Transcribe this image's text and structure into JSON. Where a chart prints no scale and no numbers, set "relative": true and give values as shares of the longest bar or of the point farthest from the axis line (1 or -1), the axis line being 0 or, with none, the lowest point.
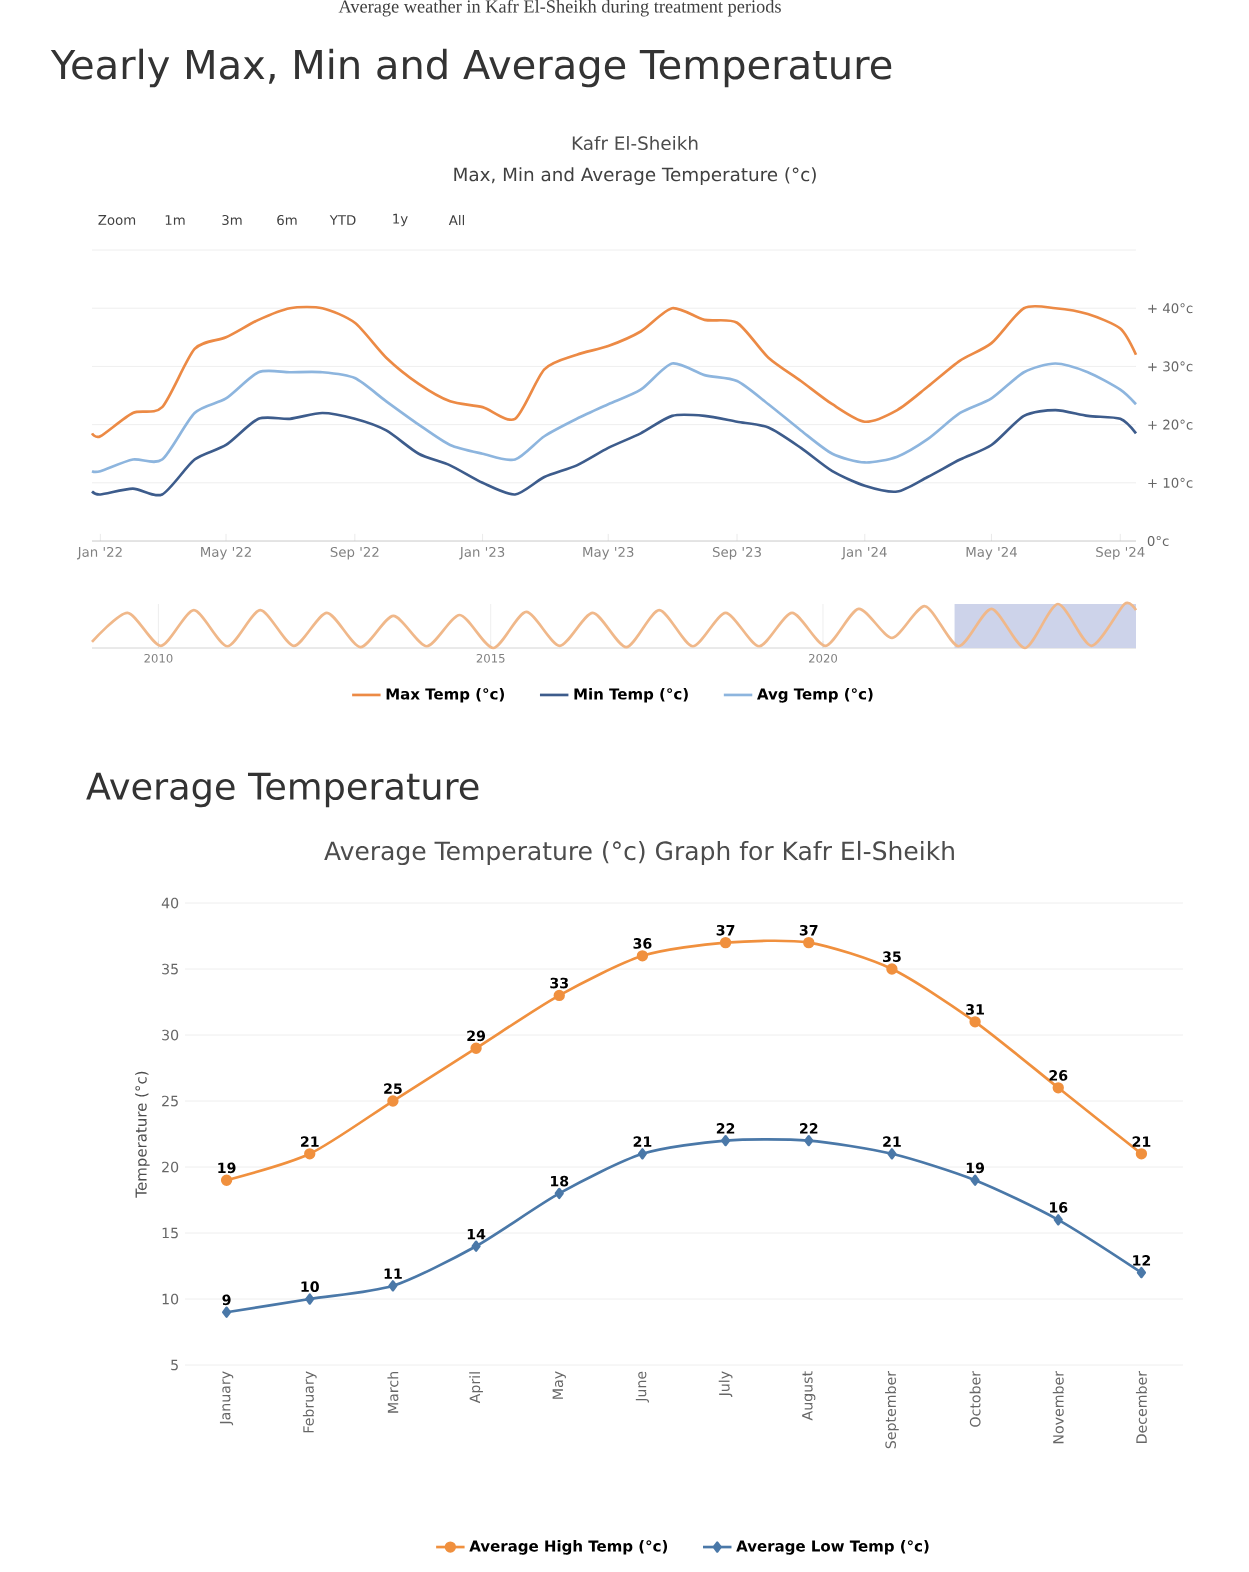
{
  "chart_data": [
    {
      "type": "line",
      "title": "Yearly Max, Min and Average Temperature",
      "subtitle": "Kafr El-Sheikh",
      "annotations": [
        "Average weather in Kafr El-Sheikh during treatment periods",
        "Max, Min and Average Temperature (°c)",
        "Zoom",
        "1m",
        "3m",
        "6m",
        "YTD",
        "1y",
        "All"
      ],
      "x": [
        "2021-12-24",
        "2022-01-01",
        "2022-02-01",
        "2022-03-01",
        "2022-04-01",
        "2022-05-01",
        "2022-06-01",
        "2022-07-01",
        "2022-08-01",
        "2022-09-01",
        "2022-10-01",
        "2022-11-01",
        "2022-12-01",
        "2023-01-01",
        "2023-02-01",
        "2023-03-01",
        "2023-04-01",
        "2023-05-01",
        "2023-06-01",
        "2023-07-01",
        "2023-08-01",
        "2023-09-01",
        "2023-10-01",
        "2023-11-01",
        "2023-12-01",
        "2024-01-01",
        "2024-02-01",
        "2024-03-01",
        "2024-04-01",
        "2024-05-01",
        "2024-06-01",
        "2024-07-01",
        "2024-08-01",
        "2024-09-01",
        "2024-09-16"
      ],
      "series": [
        {
          "name": "Max Temp (°c)",
          "color": "#ec8a45",
          "values": [
            18.5,
            18,
            22,
            23,
            33,
            35,
            38,
            40,
            40,
            37.5,
            31.5,
            27,
            24,
            23,
            21,
            29.5,
            32,
            33.5,
            36,
            40,
            38,
            37.5,
            31.5,
            27.5,
            23.5,
            20.5,
            22.5,
            26.5,
            31,
            34,
            40,
            40,
            39,
            36.5,
            32
          ]
        },
        {
          "name": "Min Temp (°c)",
          "color": "#3d5c8c",
          "values": [
            8.5,
            8,
            9,
            8,
            14,
            16.5,
            21,
            21,
            22,
            21,
            19,
            15,
            13,
            10,
            8,
            11,
            13,
            16,
            18.5,
            21.5,
            21.5,
            20.5,
            19.5,
            16,
            12,
            9.5,
            8.5,
            11,
            14,
            16.5,
            21.5,
            22.5,
            21.5,
            21,
            18.5
          ]
        },
        {
          "name": "Avg Temp (°c)",
          "color": "#8db5de",
          "values": [
            12,
            12,
            14,
            14,
            22,
            24.5,
            29,
            29,
            29,
            28,
            24,
            20,
            16.5,
            15,
            14,
            18,
            21,
            23.5,
            26,
            30.5,
            28.5,
            27.5,
            23.5,
            19,
            15,
            13.5,
            14.5,
            17.5,
            22,
            24.5,
            29,
            30.5,
            29,
            26,
            23.5
          ]
        }
      ],
      "xlim": [
        "2021-12-24",
        "2024-09-16"
      ],
      "xticks": [
        {
          "value": "2022-01-01",
          "label": "Jan '22"
        },
        {
          "value": "2022-05-01",
          "label": "May '22"
        },
        {
          "value": "2022-09-01",
          "label": "Sep '22"
        },
        {
          "value": "2023-01-01",
          "label": "Jan '23"
        },
        {
          "value": "2023-05-01",
          "label": "May '23"
        },
        {
          "value": "2023-09-01",
          "label": "Sep '23"
        },
        {
          "value": "2024-01-01",
          "label": "Jan '24"
        },
        {
          "value": "2024-05-01",
          "label": "May '24"
        },
        {
          "value": "2024-09-01",
          "label": "Sep '24"
        }
      ],
      "ylim": [
        0,
        50
      ],
      "yticks": [
        {
          "value": 0,
          "label": "0°c"
        },
        {
          "value": 10,
          "label": "+ 10°c"
        },
        {
          "value": 20,
          "label": "+ 20°c"
        },
        {
          "value": 30,
          "label": "+ 30°c"
        },
        {
          "value": 40,
          "label": "+ 40°c"
        },
        {
          "value": 50,
          "label": null
        }
      ],
      "grid": "y",
      "legend": "bottom"
    },
    {
      "type": "line",
      "relative": true,
      "color": "#f0b88a",
      "tick_labels": "x",
      "grid": "x",
      "x": [
        "2009-01-01",
        "2009-07-15",
        "2010-01-15",
        "2010-07-15",
        "2011-01-15",
        "2011-07-15",
        "2012-01-15",
        "2012-07-15",
        "2013-01-15",
        "2013-07-15",
        "2014-01-15",
        "2014-07-15",
        "2015-01-15",
        "2015-07-15",
        "2016-01-15",
        "2016-07-15",
        "2017-01-15",
        "2017-07-15",
        "2018-01-15",
        "2018-07-15",
        "2019-01-15",
        "2019-07-15",
        "2020-01-15",
        "2020-07-15",
        "2021-01-15",
        "2021-07-15",
        "2022-01-15",
        "2022-07-15",
        "2023-01-15",
        "2023-07-15",
        "2024-01-15",
        "2024-07-15",
        "2024-09-16"
      ],
      "values": [
        0.14,
        0.8,
        0.05,
        0.86,
        0.04,
        0.86,
        0.05,
        0.8,
        0.02,
        0.73,
        0.04,
        0.75,
        0.0,
        0.82,
        0.05,
        0.8,
        0.02,
        0.86,
        0.04,
        0.8,
        0.04,
        0.8,
        0.05,
        0.89,
        0.23,
        0.95,
        0.04,
        0.89,
        0.0,
        1.0,
        0.05,
        1.0,
        0.86
      ],
      "xlim": [
        "2009-01-01",
        "2024-09-16"
      ],
      "xticks": [
        {
          "value": "2010-01-01",
          "label": "2010"
        },
        {
          "value": "2015-01-01",
          "label": "2015"
        },
        {
          "value": "2020-01-01",
          "label": "2020"
        }
      ],
      "bands": [
        {
          "axis": "x",
          "from": "2021-12-24",
          "to": "2024-09-16",
          "color": "#cdd3ea"
        }
      ]
    },
    {
      "type": "line",
      "title": "Average Temperature",
      "subtitle": "Average Temperature (°c) Graph for Kafr El-Sheikh",
      "ylabel": "Temperature (°c)",
      "categories": [
        "January",
        "February",
        "March",
        "April",
        "May",
        "June",
        "July",
        "August",
        "September",
        "October",
        "November",
        "December"
      ],
      "series": [
        {
          "name": "Average High Temp (°c)",
          "color": "#f0903e",
          "marker": "circle",
          "values": [
            19,
            21,
            25,
            29,
            33,
            36,
            37,
            37,
            35,
            31,
            26,
            21
          ]
        },
        {
          "name": "Average Low Temp (°c)",
          "color": "#4a78a8",
          "marker": "diamond",
          "values": [
            9,
            10,
            11,
            14,
            18,
            21,
            22,
            22,
            21,
            19,
            16,
            12
          ]
        }
      ],
      "ylim": [
        5,
        40
      ],
      "yticks": [
        5,
        10,
        15,
        20,
        25,
        30,
        35,
        40
      ],
      "grid": "y",
      "legend": "bottom",
      "data_labels": true
    }
  ]
}
